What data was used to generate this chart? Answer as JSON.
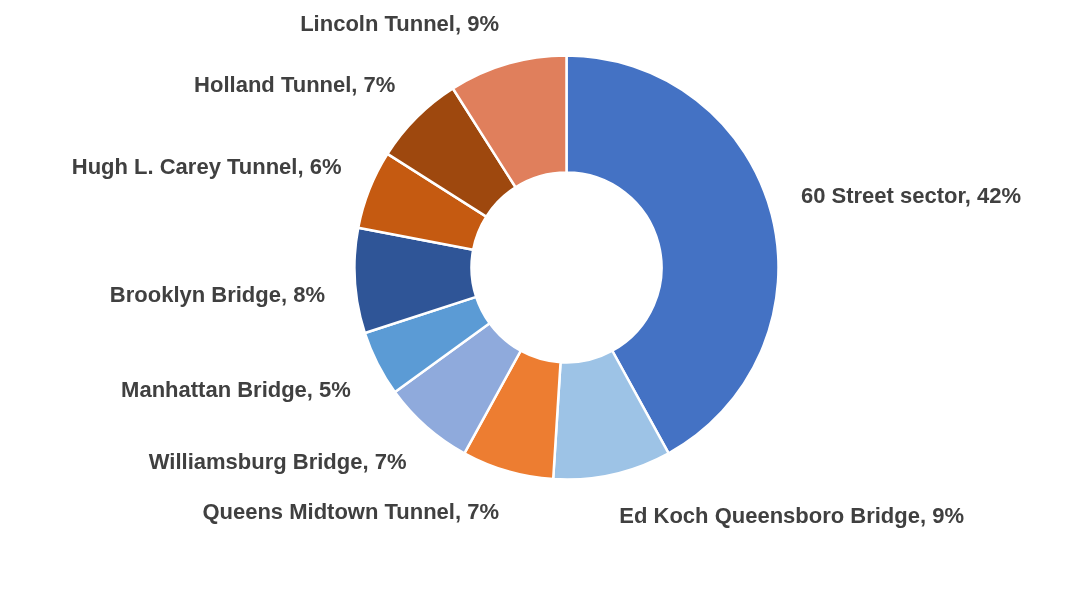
{
  "chart_data": {
    "type": "donut",
    "categories": [
      "60 Street sector",
      "Ed Koch Queensboro Bridge",
      "Queens Midtown Tunnel",
      "Williamsburg Bridge",
      "Manhattan Bridge",
      "Brooklyn Bridge",
      "Hugh L. Carey Tunnel",
      "Holland Tunnel",
      "Lincoln Tunnel"
    ],
    "values": [
      42,
      9,
      7,
      7,
      5,
      8,
      6,
      7,
      9
    ],
    "colors": [
      "#4472c4",
      "#9dc3e6",
      "#ed7d31",
      "#8faadc",
      "#5b9bd5",
      "#2f5597",
      "#c55a11",
      "#9e480e",
      "#e07f5c"
    ],
    "value_labels": [
      "42%",
      "9%",
      "7%",
      "7%",
      "5%",
      "8%",
      "6%",
      "7%",
      "9%"
    ]
  }
}
